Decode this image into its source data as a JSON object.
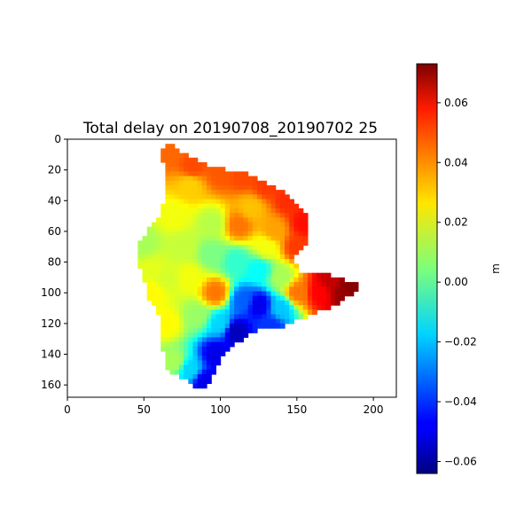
{
  "chart_data": {
    "type": "heatmap",
    "title": "Total delay on 20190708_20190702 25",
    "xlabel": "",
    "ylabel": "",
    "x_ticks": [
      0,
      50,
      100,
      150,
      200
    ],
    "y_ticks": [
      0,
      20,
      40,
      60,
      80,
      100,
      120,
      140,
      160
    ],
    "xlim": [
      0,
      215
    ],
    "ylim": [
      168,
      0
    ],
    "grid": false,
    "colormap": "jet",
    "colorbar": {
      "label": "m",
      "vmin": -0.064,
      "vmax": 0.073,
      "ticks": [
        "0.06",
        "0.04",
        "0.02",
        "0.00",
        "−0.02",
        "−0.04",
        "−0.06"
      ],
      "tick_values": [
        0.06,
        0.04,
        0.02,
        0.0,
        -0.02,
        -0.04,
        -0.06
      ]
    },
    "outline": [
      [
        62,
        6
      ],
      [
        66,
        3
      ],
      [
        72,
        6
      ],
      [
        78,
        10
      ],
      [
        85,
        14
      ],
      [
        92,
        17
      ],
      [
        102,
        19
      ],
      [
        112,
        21
      ],
      [
        122,
        24
      ],
      [
        132,
        29
      ],
      [
        142,
        35
      ],
      [
        150,
        42
      ],
      [
        157,
        50
      ],
      [
        158,
        60
      ],
      [
        156,
        68
      ],
      [
        150,
        73
      ],
      [
        148,
        80
      ],
      [
        152,
        86
      ],
      [
        162,
        88
      ],
      [
        170,
        88
      ],
      [
        180,
        91
      ],
      [
        189,
        93
      ],
      [
        190,
        97
      ],
      [
        183,
        103
      ],
      [
        172,
        109
      ],
      [
        160,
        114
      ],
      [
        150,
        118
      ],
      [
        140,
        122
      ],
      [
        130,
        123
      ],
      [
        120,
        126
      ],
      [
        110,
        133
      ],
      [
        100,
        143
      ],
      [
        96,
        153
      ],
      [
        90,
        163
      ],
      [
        85,
        162
      ],
      [
        76,
        155
      ],
      [
        66,
        152
      ],
      [
        63,
        145
      ],
      [
        62,
        132
      ],
      [
        62,
        120
      ],
      [
        58,
        111
      ],
      [
        53,
        105
      ],
      [
        51,
        96
      ],
      [
        49,
        88
      ],
      [
        45,
        80
      ],
      [
        46,
        70
      ],
      [
        50,
        63
      ],
      [
        55,
        56
      ],
      [
        62,
        47
      ],
      [
        63,
        37
      ],
      [
        63,
        22
      ],
      [
        62,
        6
      ]
    ],
    "value_points": [
      [
        68,
        8,
        0.042
      ],
      [
        82,
        18,
        0.046
      ],
      [
        100,
        22,
        0.044
      ],
      [
        115,
        24,
        0.046
      ],
      [
        130,
        30,
        0.048
      ],
      [
        145,
        40,
        0.05
      ],
      [
        155,
        55,
        0.054
      ],
      [
        172,
        92,
        0.064
      ],
      [
        185,
        95,
        0.072
      ],
      [
        180,
        100,
        0.07
      ],
      [
        165,
        100,
        0.056
      ],
      [
        150,
        70,
        0.048
      ],
      [
        150,
        100,
        0.04
      ],
      [
        135,
        60,
        0.034
      ],
      [
        120,
        45,
        0.03
      ],
      [
        112,
        56,
        0.04
      ],
      [
        80,
        30,
        0.028
      ],
      [
        70,
        50,
        0.02
      ],
      [
        50,
        68,
        0.01
      ],
      [
        55,
        85,
        0.018
      ],
      [
        55,
        100,
        0.022
      ],
      [
        65,
        120,
        0.022
      ],
      [
        70,
        145,
        0.01
      ],
      [
        80,
        150,
        -0.018
      ],
      [
        90,
        158,
        -0.05
      ],
      [
        97,
        140,
        -0.05
      ],
      [
        110,
        125,
        -0.056
      ],
      [
        125,
        108,
        -0.05
      ],
      [
        133,
        122,
        -0.04
      ],
      [
        115,
        105,
        -0.034
      ],
      [
        100,
        120,
        -0.018
      ],
      [
        85,
        115,
        0.008
      ],
      [
        97,
        100,
        0.04
      ],
      [
        80,
        90,
        0.02
      ],
      [
        95,
        75,
        0.004
      ],
      [
        110,
        80,
        -0.006
      ],
      [
        125,
        85,
        -0.012
      ],
      [
        140,
        90,
        0.01
      ],
      [
        140,
        110,
        -0.02
      ],
      [
        130,
        70,
        0.02
      ],
      [
        95,
        55,
        0.012
      ],
      [
        75,
        70,
        0.014
      ],
      [
        65,
        90,
        0.016
      ]
    ]
  }
}
